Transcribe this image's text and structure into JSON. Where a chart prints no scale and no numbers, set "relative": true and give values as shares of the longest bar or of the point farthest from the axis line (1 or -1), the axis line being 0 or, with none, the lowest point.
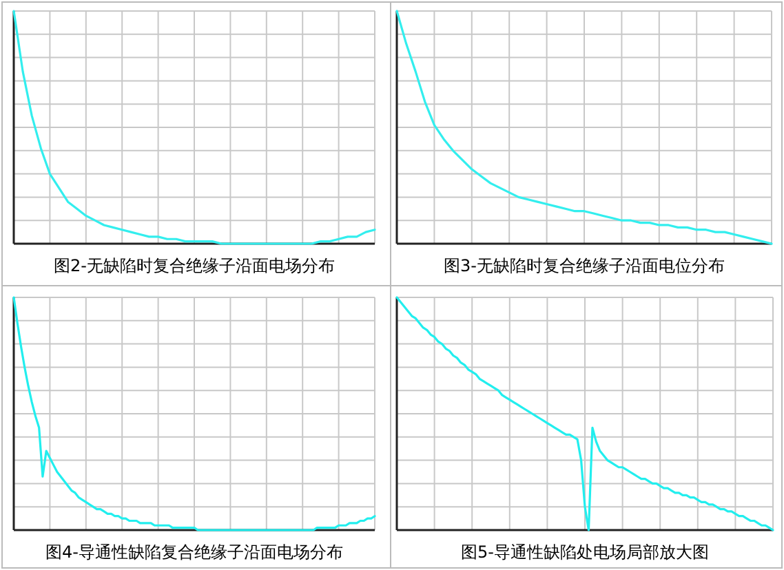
{
  "chart_data": [
    {
      "type": "line",
      "title": "图2-无缺陷时复合绝缘子沿面电场分布",
      "relative": true,
      "grid": true,
      "categories": [
        null,
        null,
        null,
        null,
        null,
        null,
        null,
        null,
        null,
        null,
        null,
        null,
        null,
        null,
        null,
        null,
        null,
        null,
        null,
        null,
        null,
        null,
        null,
        null,
        null,
        null,
        null,
        null,
        null,
        null,
        null,
        null,
        null,
        null,
        null,
        null,
        null,
        null,
        null,
        null,
        null
      ],
      "series": [
        {
          "color": "#33eeee",
          "values": [
            1.0,
            0.74,
            0.55,
            0.41,
            0.3,
            0.24,
            0.18,
            0.15,
            0.12,
            0.1,
            0.08,
            0.07,
            0.06,
            0.05,
            0.04,
            0.03,
            0.03,
            0.02,
            0.02,
            0.01,
            0.01,
            0.01,
            0.01,
            0.0,
            0.0,
            0.0,
            0.0,
            0.0,
            0.0,
            0.0,
            0.0,
            0.0,
            0.0,
            0.0,
            0.01,
            0.01,
            0.02,
            0.03,
            0.03,
            0.05,
            0.06
          ]
        }
      ]
    },
    {
      "type": "line",
      "title": "图3-无缺陷时复合绝缘子沿面电位分布",
      "relative": true,
      "grid": true,
      "categories": [
        null,
        null,
        null,
        null,
        null,
        null,
        null,
        null,
        null,
        null,
        null,
        null,
        null,
        null,
        null,
        null,
        null,
        null,
        null,
        null,
        null,
        null,
        null,
        null,
        null,
        null,
        null,
        null,
        null,
        null,
        null,
        null,
        null,
        null,
        null,
        null,
        null,
        null,
        null,
        null,
        null
      ],
      "series": [
        {
          "color": "#33eeee",
          "values": [
            1.0,
            0.86,
            0.74,
            0.61,
            0.51,
            0.45,
            0.4,
            0.36,
            0.32,
            0.29,
            0.26,
            0.24,
            0.22,
            0.2,
            0.19,
            0.18,
            0.17,
            0.16,
            0.15,
            0.14,
            0.14,
            0.13,
            0.12,
            0.11,
            0.1,
            0.1,
            0.09,
            0.09,
            0.08,
            0.08,
            0.07,
            0.07,
            0.06,
            0.06,
            0.05,
            0.05,
            0.04,
            0.03,
            0.02,
            0.01,
            0.0
          ]
        }
      ]
    },
    {
      "type": "line",
      "title": "图4-导通性缺陷复合绝缘子沿面电场分布",
      "relative": true,
      "grid": true,
      "categories": [
        null,
        null,
        null,
        null,
        null,
        null,
        null,
        null,
        null,
        null,
        null,
        null,
        null,
        null,
        null,
        null,
        null,
        null,
        null,
        null,
        null,
        null,
        null,
        null,
        null,
        null,
        null,
        null,
        null,
        null,
        null,
        null,
        null,
        null,
        null,
        null,
        null,
        null,
        null,
        null,
        null,
        null,
        null,
        null,
        null,
        null,
        null,
        null,
        null,
        null,
        null,
        null,
        null,
        null,
        null,
        null,
        null,
        null,
        null,
        null,
        null,
        null,
        null,
        null,
        null,
        null,
        null,
        null,
        null,
        null,
        null,
        null,
        null,
        null,
        null,
        null,
        null,
        null,
        null,
        null,
        null,
        null,
        null,
        null,
        null,
        null,
        null,
        null,
        null,
        null,
        null,
        null,
        null,
        null,
        null,
        null,
        null,
        null,
        null,
        null,
        null
      ],
      "series": [
        {
          "color": "#22eeee",
          "values": [
            1.0,
            0.89,
            0.79,
            0.7,
            0.62,
            0.55,
            0.49,
            0.44,
            0.23,
            0.34,
            0.31,
            0.28,
            0.25,
            0.23,
            0.21,
            0.19,
            0.17,
            0.16,
            0.14,
            0.13,
            0.12,
            0.11,
            0.1,
            0.09,
            0.09,
            0.08,
            0.07,
            0.07,
            0.06,
            0.06,
            0.05,
            0.05,
            0.04,
            0.04,
            0.04,
            0.03,
            0.03,
            0.03,
            0.03,
            0.02,
            0.02,
            0.02,
            0.02,
            0.02,
            0.01,
            0.01,
            0.01,
            0.01,
            0.01,
            0.01,
            0.01,
            0.0,
            0.0,
            0.0,
            0.0,
            0.0,
            0.0,
            0.0,
            0.0,
            0.0,
            0.0,
            0.0,
            0.0,
            0.0,
            0.0,
            0.0,
            0.0,
            0.0,
            0.0,
            0.0,
            0.0,
            0.0,
            0.0,
            0.0,
            0.0,
            0.0,
            0.0,
            0.0,
            0.0,
            0.0,
            0.0,
            0.0,
            0.0,
            0.0,
            0.01,
            0.01,
            0.01,
            0.01,
            0.01,
            0.01,
            0.02,
            0.02,
            0.02,
            0.03,
            0.03,
            0.03,
            0.04,
            0.04,
            0.05,
            0.05,
            0.06
          ]
        }
      ]
    },
    {
      "type": "line",
      "title": "图5-导通性缺陷处电场局部放大图",
      "relative": true,
      "grid": true,
      "categories": [
        null,
        null,
        null,
        null,
        null,
        null,
        null,
        null,
        null,
        null,
        null,
        null,
        null,
        null,
        null,
        null,
        null,
        null,
        null,
        null,
        null,
        null,
        null,
        null,
        null,
        null,
        null,
        null,
        null,
        null,
        null,
        null,
        null,
        null,
        null,
        null,
        null,
        null,
        null,
        null,
        null,
        null,
        null,
        null,
        null,
        null,
        null,
        null,
        null,
        null,
        null,
        null,
        null,
        null,
        null,
        null,
        null,
        null,
        null,
        null,
        null,
        null,
        null,
        null,
        null,
        null,
        null,
        null,
        null,
        null,
        null,
        null,
        null,
        null,
        null,
        null,
        null,
        null,
        null,
        null,
        null,
        null,
        null,
        null,
        null,
        null,
        null,
        null,
        null,
        null,
        null,
        null,
        null,
        null,
        null,
        null,
        null,
        null,
        null,
        null,
        null
      ],
      "series": [
        {
          "color": "#22eeee",
          "values": [
            1.0,
            0.98,
            0.96,
            0.94,
            0.92,
            0.91,
            0.89,
            0.87,
            0.86,
            0.84,
            0.83,
            0.81,
            0.8,
            0.78,
            0.77,
            0.75,
            0.74,
            0.72,
            0.71,
            0.69,
            0.68,
            0.67,
            0.65,
            0.64,
            0.63,
            0.62,
            0.61,
            0.6,
            0.58,
            0.57,
            0.56,
            0.55,
            0.54,
            0.53,
            0.52,
            0.51,
            0.5,
            0.49,
            0.48,
            0.47,
            0.46,
            0.45,
            0.44,
            0.43,
            0.42,
            0.41,
            0.41,
            0.4,
            0.39,
            0.3,
            0.1,
            0.0,
            0.44,
            0.38,
            0.34,
            0.32,
            0.3,
            0.29,
            0.28,
            0.27,
            0.27,
            0.26,
            0.25,
            0.24,
            0.23,
            0.22,
            0.22,
            0.21,
            0.2,
            0.2,
            0.19,
            0.18,
            0.18,
            0.17,
            0.16,
            0.16,
            0.15,
            0.15,
            0.14,
            0.14,
            0.13,
            0.12,
            0.12,
            0.11,
            0.11,
            0.1,
            0.09,
            0.09,
            0.08,
            0.08,
            0.07,
            0.06,
            0.06,
            0.05,
            0.04,
            0.04,
            0.03,
            0.02,
            0.02,
            0.01,
            0.0
          ]
        }
      ]
    }
  ]
}
